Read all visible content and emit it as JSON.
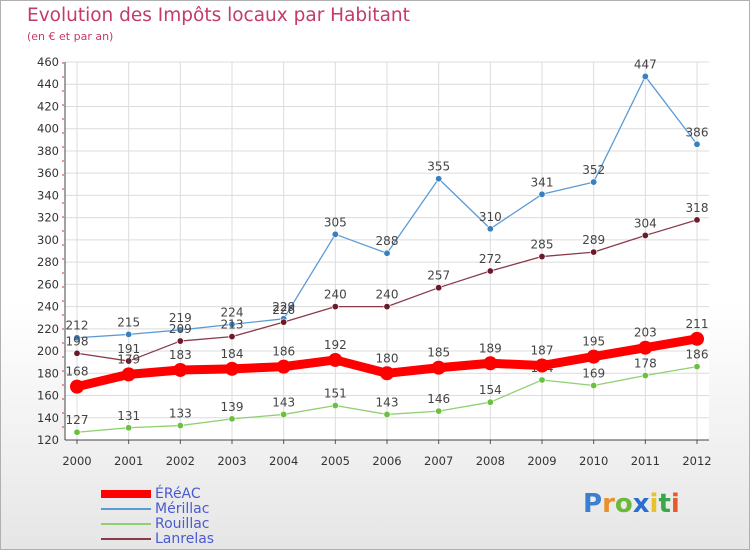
{
  "title": "Evolution des Impôts locaux par Habitant",
  "subtitle": "(en € et par an)",
  "brand": {
    "text": "Proxiti",
    "letter_colors": [
      "#3a7fd0",
      "#e8902a",
      "#6cb83a",
      "#2a6fcf",
      "#e8c22a",
      "#3aa84a",
      "#e85a2a"
    ]
  },
  "chart_data": {
    "type": "line",
    "x": [
      "2000",
      "2001",
      "2002",
      "2003",
      "2004",
      "2005",
      "2006",
      "2007",
      "2008",
      "2009",
      "2010",
      "2011",
      "2012"
    ],
    "ylim": [
      120,
      460
    ],
    "yticks": [
      120,
      140,
      160,
      180,
      200,
      220,
      240,
      260,
      280,
      300,
      320,
      340,
      360,
      380,
      400,
      420,
      440,
      460
    ],
    "grid": true,
    "legend_position": "bottom-left",
    "series": [
      {
        "name": "Mérillac",
        "color": "#5b9bd5",
        "marker": "#3a7fc0",
        "values": [
          212,
          215,
          219,
          224,
          229,
          305,
          288,
          355,
          310,
          341,
          352,
          447,
          386
        ],
        "labels": [
          "212",
          "215",
          "219",
          "224",
          "229",
          "305",
          "288",
          "355",
          "310",
          "341",
          "352",
          "447",
          "386"
        ]
      },
      {
        "name": "Lanrelas",
        "color": "#8b3a4a",
        "marker": "#6a1a2a",
        "values": [
          198,
          191,
          209,
          213,
          226,
          240,
          240,
          257,
          272,
          285,
          289,
          304,
          318
        ],
        "labels": [
          "198",
          "191",
          "209",
          "213",
          "226",
          "240",
          "240",
          "257",
          "272",
          "285",
          "289",
          "304",
          "318"
        ]
      },
      {
        "name": "Rouillac",
        "color": "#90d070",
        "marker": "#6cc040",
        "values": [
          127,
          131,
          133,
          139,
          143,
          151,
          143,
          146,
          154,
          174,
          169,
          178,
          186
        ],
        "labels": [
          "127",
          "131",
          "133",
          "139",
          "143",
          "151",
          "143",
          "146",
          "154",
          "174",
          "169",
          "178",
          "186"
        ]
      },
      {
        "name": "ÉRéAC",
        "color": "#ff0000",
        "marker": "#ff0000",
        "values": [
          168,
          179,
          183,
          184,
          186,
          192,
          180,
          185,
          189,
          187,
          195,
          203,
          211
        ],
        "labels": [
          "168",
          "179",
          "183",
          "184",
          "186",
          "192",
          "180",
          "185",
          "189",
          "187",
          "195",
          "203",
          "211"
        ]
      }
    ],
    "legend_order": [
      "ÉRéAC",
      "Mérillac",
      "Rouillac",
      "Lanrelas"
    ]
  }
}
